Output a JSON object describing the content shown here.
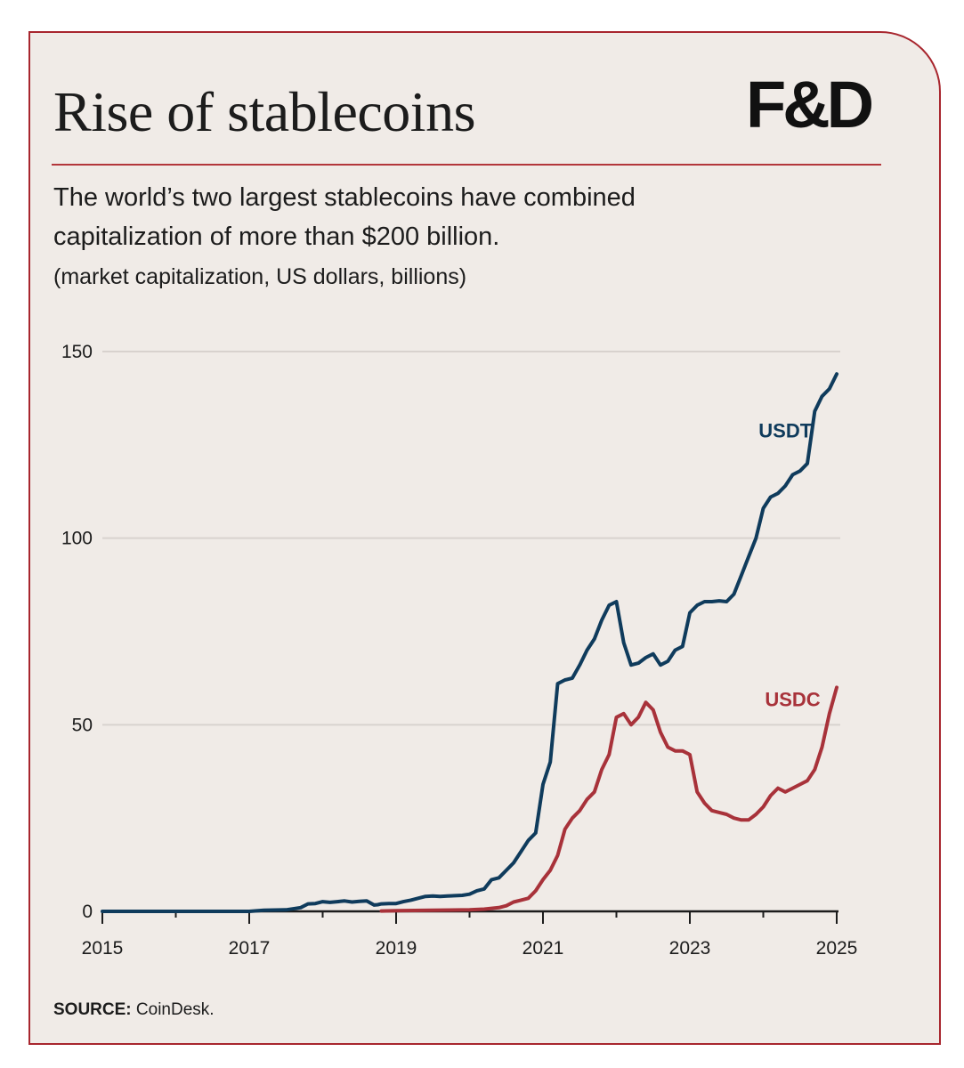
{
  "header": {
    "title": "Rise of stablecoins",
    "logo": "F&D",
    "subtitle_line1": "The world’s two largest stablecoins have combined",
    "subtitle_line2": "capitalization of more than $200 billion.",
    "units": "(market capitalization, US dollars, billions)"
  },
  "footer": {
    "source_label": "SOURCE:",
    "source_text": "CoinDesk."
  },
  "colors": {
    "usdt": "#0f3b5c",
    "usdc": "#a8323a",
    "gridline": "#d8d2ce",
    "frame": "#a8262e",
    "background": "#f0ebe7"
  },
  "chart_data": {
    "type": "line",
    "title": "",
    "xlabel": "",
    "ylabel": "",
    "xlim": [
      2015,
      2025
    ],
    "ylim": [
      0,
      150
    ],
    "x_ticks": [
      2015,
      2017,
      2019,
      2021,
      2023,
      2025
    ],
    "y_ticks": [
      0,
      50,
      100,
      150
    ],
    "grid": true,
    "legend": "inline labels near line ends",
    "series": [
      {
        "name": "USDT",
        "label_anchor": [
          2024.3,
          127
        ],
        "x": [
          2015.0,
          2016.0,
          2017.0,
          2017.2,
          2017.5,
          2017.7,
          2017.8,
          2017.9,
          2018.0,
          2018.1,
          2018.2,
          2018.3,
          2018.4,
          2018.5,
          2018.6,
          2018.7,
          2018.75,
          2018.8,
          2018.9,
          2019.0,
          2019.1,
          2019.2,
          2019.3,
          2019.4,
          2019.5,
          2019.6,
          2019.7,
          2019.8,
          2019.9,
          2020.0,
          2020.1,
          2020.2,
          2020.3,
          2020.4,
          2020.5,
          2020.6,
          2020.7,
          2020.8,
          2020.9,
          2021.0,
          2021.1,
          2021.2,
          2021.3,
          2021.4,
          2021.5,
          2021.6,
          2021.7,
          2021.8,
          2021.9,
          2022.0,
          2022.1,
          2022.2,
          2022.3,
          2022.4,
          2022.5,
          2022.6,
          2022.7,
          2022.8,
          2022.9,
          2023.0,
          2023.1,
          2023.2,
          2023.3,
          2023.4,
          2023.5,
          2023.6,
          2023.7,
          2023.8,
          2023.9,
          2024.0,
          2024.1,
          2024.2,
          2024.3,
          2024.4,
          2024.5,
          2024.6,
          2024.7,
          2024.8,
          2024.9,
          2025.0
        ],
        "values": [
          0,
          0,
          0,
          0.3,
          0.4,
          1.0,
          2.0,
          2.1,
          2.6,
          2.4,
          2.6,
          2.8,
          2.5,
          2.7,
          2.8,
          1.7,
          1.8,
          2.0,
          2.1,
          2.1,
          2.6,
          3.0,
          3.5,
          4.0,
          4.1,
          4.0,
          4.1,
          4.2,
          4.3,
          4.6,
          5.5,
          6.0,
          8.5,
          9.0,
          11.0,
          13.0,
          16.0,
          19.0,
          21.0,
          34.0,
          40.0,
          61.0,
          62.0,
          62.5,
          66.0,
          70.0,
          73.0,
          78.0,
          82.0,
          83.0,
          72.0,
          66.0,
          66.5,
          68.0,
          69.0,
          66.0,
          67.0,
          70.0,
          71.0,
          80.0,
          82.0,
          83.0,
          83.0,
          83.2,
          83.0,
          85.0,
          90.0,
          95.0,
          100.0,
          108.0,
          111.0,
          112.0,
          114.0,
          117.0,
          118.0,
          120.0,
          134.0,
          138.0,
          140.0,
          144.0
        ]
      },
      {
        "name": "USDC",
        "label_anchor": [
          2024.4,
          55
        ],
        "x": [
          2018.8,
          2019.0,
          2019.5,
          2020.0,
          2020.2,
          2020.4,
          2020.5,
          2020.6,
          2020.7,
          2020.8,
          2020.9,
          2021.0,
          2021.1,
          2021.2,
          2021.3,
          2021.4,
          2021.5,
          2021.6,
          2021.7,
          2021.8,
          2021.9,
          2022.0,
          2022.1,
          2022.2,
          2022.3,
          2022.4,
          2022.5,
          2022.6,
          2022.7,
          2022.8,
          2022.9,
          2023.0,
          2023.1,
          2023.2,
          2023.3,
          2023.4,
          2023.5,
          2023.6,
          2023.7,
          2023.8,
          2023.9,
          2024.0,
          2024.1,
          2024.2,
          2024.3,
          2024.4,
          2024.5,
          2024.6,
          2024.7,
          2024.8,
          2024.9,
          2025.0
        ],
        "values": [
          0.1,
          0.2,
          0.3,
          0.4,
          0.6,
          1.0,
          1.5,
          2.5,
          3.0,
          3.5,
          5.5,
          8.5,
          11.0,
          15.0,
          22.0,
          25.0,
          27.0,
          30.0,
          32.0,
          38.0,
          42.0,
          52.0,
          53.0,
          50.0,
          52.0,
          56.0,
          54.0,
          48.0,
          44.0,
          43.0,
          43.0,
          42.0,
          32.0,
          29.0,
          27.0,
          26.5,
          26.0,
          25.0,
          24.5,
          24.5,
          26.0,
          28.0,
          31.0,
          33.0,
          32.0,
          33.0,
          34.0,
          35.0,
          38.0,
          44.0,
          53.0,
          60.0
        ]
      }
    ]
  }
}
